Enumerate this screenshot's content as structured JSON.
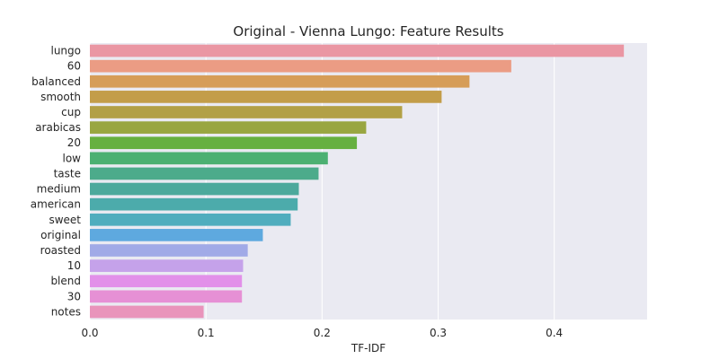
{
  "chart_data": {
    "type": "bar",
    "orientation": "horizontal",
    "title": "Original - Vienna Lungo: Feature Results",
    "xlabel": "TF-IDF",
    "ylabel": "",
    "xlim": [
      0,
      0.48
    ],
    "xticks": [
      "0.0",
      "0.1",
      "0.2",
      "0.3",
      "0.4"
    ],
    "grid": true,
    "categories": [
      "lungo",
      "60",
      "balanced",
      "smooth",
      "cup",
      "arabicas",
      "20",
      "low",
      "taste",
      "medium",
      "american",
      "sweet",
      "original",
      "roasted",
      "10",
      "blend",
      "30",
      "notes"
    ],
    "values": [
      0.46,
      0.363,
      0.327,
      0.303,
      0.269,
      0.238,
      0.23,
      0.205,
      0.197,
      0.18,
      0.179,
      0.173,
      0.149,
      0.136,
      0.132,
      0.131,
      0.131,
      0.098
    ],
    "colors": [
      "#ea96a3",
      "#eb9c84",
      "#d69d58",
      "#c39d49",
      "#b2a046",
      "#99a641",
      "#66b040",
      "#4cb072",
      "#4cab8b",
      "#4ca99c",
      "#4cabab",
      "#50adbe",
      "#5ea9df",
      "#a1aae7",
      "#c5a2ea",
      "#e290e9",
      "#e690d5",
      "#e994bb"
    ]
  }
}
